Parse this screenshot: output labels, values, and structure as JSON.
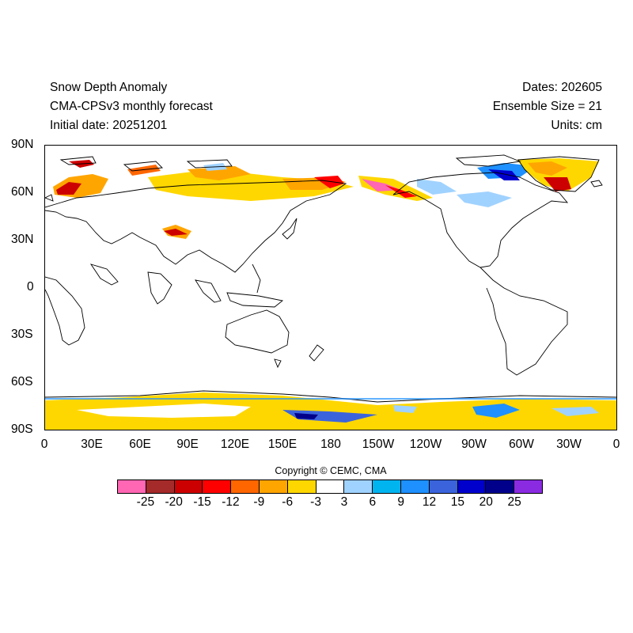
{
  "header": {
    "title": "Snow Depth Anomaly",
    "subtitle": "CMA-CPSv3 monthly forecast",
    "initial_date": "Initial date: 20251201",
    "dates": "Dates: 202605",
    "ensemble": "Ensemble Size = 21",
    "units": "Units: cm"
  },
  "map": {
    "projection": "cylindrical equidistant",
    "lat_labels": [
      "90N",
      "60N",
      "30N",
      "0",
      "30S",
      "60S",
      "90S"
    ],
    "lon_labels": [
      "0",
      "30E",
      "60E",
      "90E",
      "120E",
      "150E",
      "180",
      "150W",
      "120W",
      "90W",
      "60W",
      "30W",
      "0"
    ],
    "coastline_color": "#000000"
  },
  "copyright": "Copyright © CEMC, CMA",
  "colorbar": {
    "colors": [
      "#ff66b3",
      "#a52a2a",
      "#cc0000",
      "#ff0000",
      "#ff6600",
      "#ffa500",
      "#ffd700",
      "#ffffff",
      "#a0d2ff",
      "#00b4f0",
      "#1e90ff",
      "#3b64dc",
      "#0000cd",
      "#00008b",
      "#8a2be2"
    ],
    "labels": [
      "-25",
      "-20",
      "-15",
      "-12",
      "-9",
      "-6",
      "-3",
      "3",
      "6",
      "9",
      "12",
      "15",
      "20",
      "25"
    ]
  }
}
